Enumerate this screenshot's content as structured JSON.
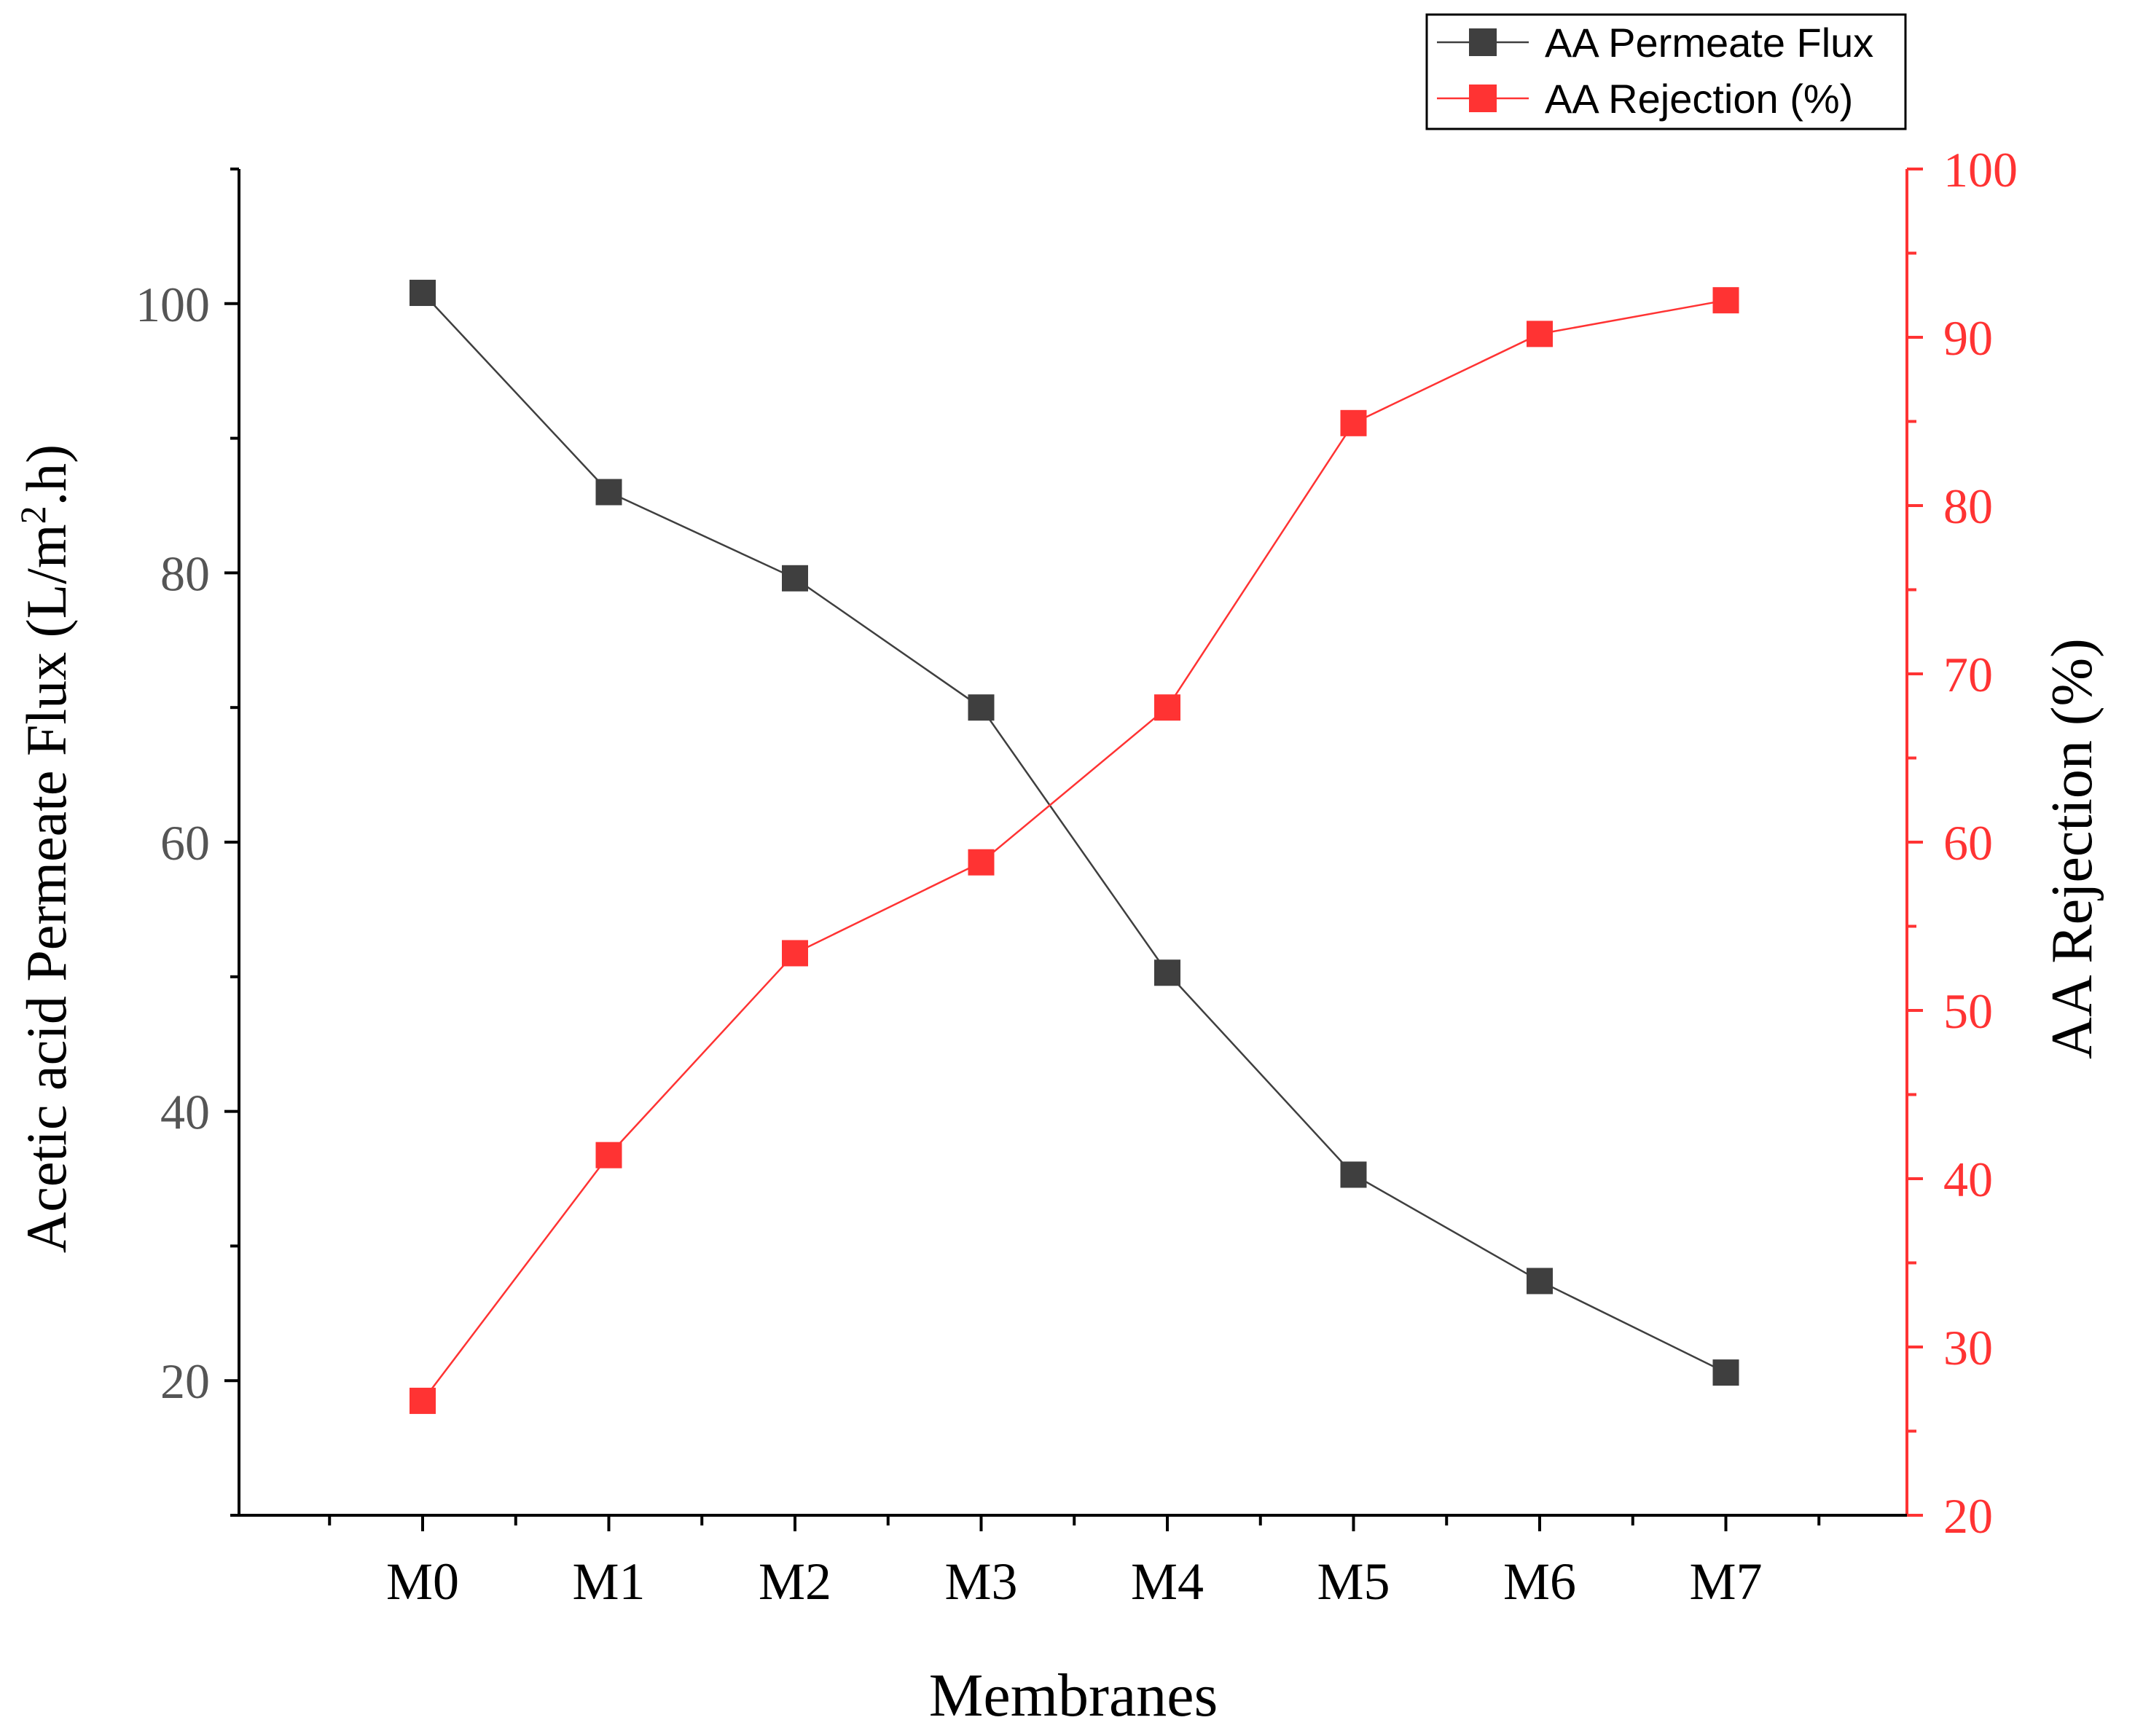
{
  "chart_data": {
    "type": "line",
    "title": "",
    "xlabel": "Membranes",
    "ylabel": {
      "main": "Acetic acid Permeate Flux (L/m",
      "sup": "2",
      "tail": ".h)"
    },
    "y2label": "AA Rejection (%)",
    "categories": [
      "M0",
      "M1",
      "M2",
      "M3",
      "M4",
      "M5",
      "M6",
      "M7"
    ],
    "ylim": [
      10,
      110
    ],
    "yticks": [
      20,
      40,
      60,
      80,
      100
    ],
    "y2lim": [
      20,
      100
    ],
    "y2ticks": [
      20,
      30,
      40,
      50,
      60,
      70,
      80,
      90,
      100
    ],
    "legend_position": "top-right",
    "series": [
      {
        "name": "AA Permeate Flux",
        "axis": "left",
        "color": "#3f3f3f",
        "values": [
          100.8,
          86.0,
          79.6,
          70.0,
          50.3,
          35.3,
          27.4,
          20.6
        ]
      },
      {
        "name": "AA Rejection (%)",
        "axis": "right",
        "color": "#ff3333",
        "values": [
          26.8,
          41.4,
          53.4,
          58.8,
          68.0,
          84.9,
          90.2,
          92.2
        ]
      }
    ]
  }
}
